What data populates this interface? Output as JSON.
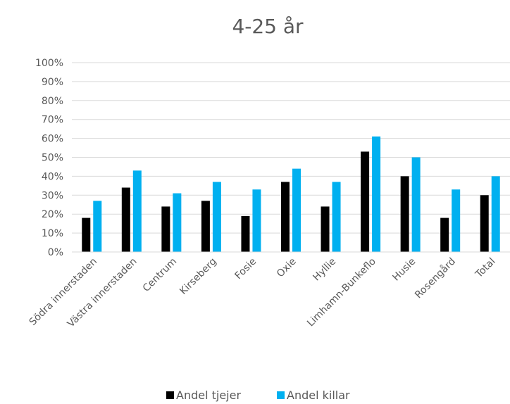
{
  "chart_data": {
    "type": "bar",
    "title": "4-25 år",
    "categories": [
      "Södra innerstaden",
      "Västra innerstaden",
      "Centrum",
      "Kirseberg",
      "Fosie",
      "Oxie",
      "Hyllie",
      "Limhamn-Bunkeflo",
      "Husie",
      "Rosengård",
      "Total"
    ],
    "series": [
      {
        "name": "Andel tjejer",
        "color": "#000000",
        "values": [
          18,
          34,
          24,
          27,
          19,
          37,
          24,
          53,
          40,
          18,
          30
        ]
      },
      {
        "name": "Andel killar",
        "color": "#00b0f0",
        "values": [
          27,
          43,
          31,
          37,
          33,
          44,
          37,
          61,
          50,
          33,
          40
        ]
      }
    ],
    "ylim": [
      0,
      100
    ],
    "y_ticks": [
      "0%",
      "10%",
      "20%",
      "30%",
      "40%",
      "50%",
      "60%",
      "70%",
      "80%",
      "90%",
      "100%"
    ],
    "grid": true,
    "legend": "bottom"
  }
}
